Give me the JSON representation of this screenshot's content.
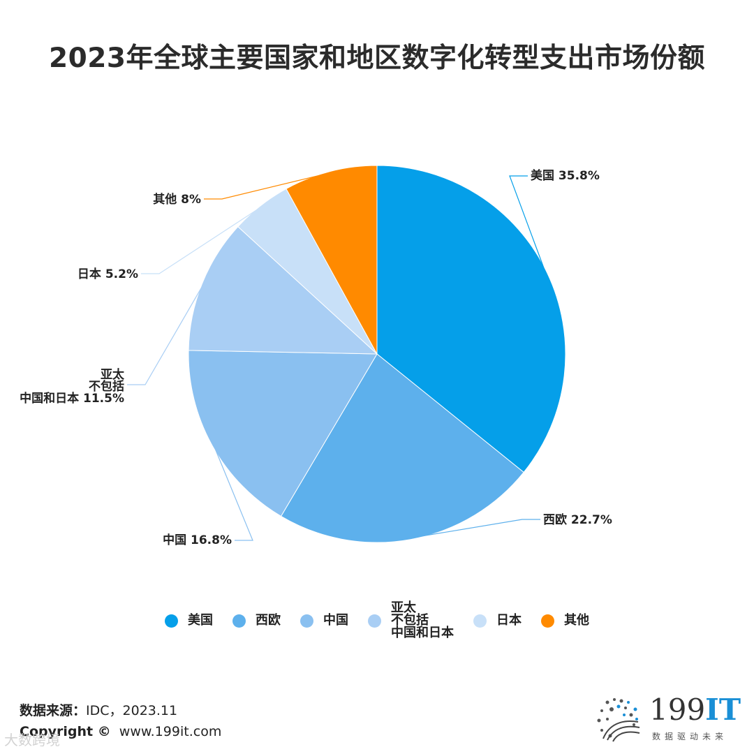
{
  "title": "2023年全球主要国家和地区数字化转型支出市场份额",
  "chart_data": {
    "type": "pie",
    "title": "2023年全球主要国家和地区数字化转型支出市场份额",
    "unit": "%",
    "slices": [
      {
        "label": "美国",
        "value": 35.8,
        "value_label": "35.8%",
        "color": "#059FE9"
      },
      {
        "label": "西欧",
        "value": 22.7,
        "value_label": "22.7%",
        "color": "#5DB0EC"
      },
      {
        "label": "中国",
        "value": 16.8,
        "value_label": "16.8%",
        "color": "#8AC0F0"
      },
      {
        "label": "亚太\n不包括\n中国和日本",
        "value": 11.5,
        "value_label": "11.5%",
        "color": "#A9CEF4"
      },
      {
        "label": "日本",
        "value": 5.2,
        "value_label": "5.2%",
        "color": "#C8E0F8"
      },
      {
        "label": "其他",
        "value": 8,
        "value_label": "8%",
        "color": "#FF8A00"
      }
    ],
    "legend_position": "bottom"
  },
  "footer": {
    "source_label": "数据来源：",
    "source_value": "IDC，2023.11",
    "copyright_label": "Copyright ©",
    "copyright_value": "www.199it.com"
  },
  "logo": {
    "main_plain": "199",
    "main_accent": "IT",
    "tagline": "数据驱动未来"
  },
  "watermark": "大数跨境"
}
